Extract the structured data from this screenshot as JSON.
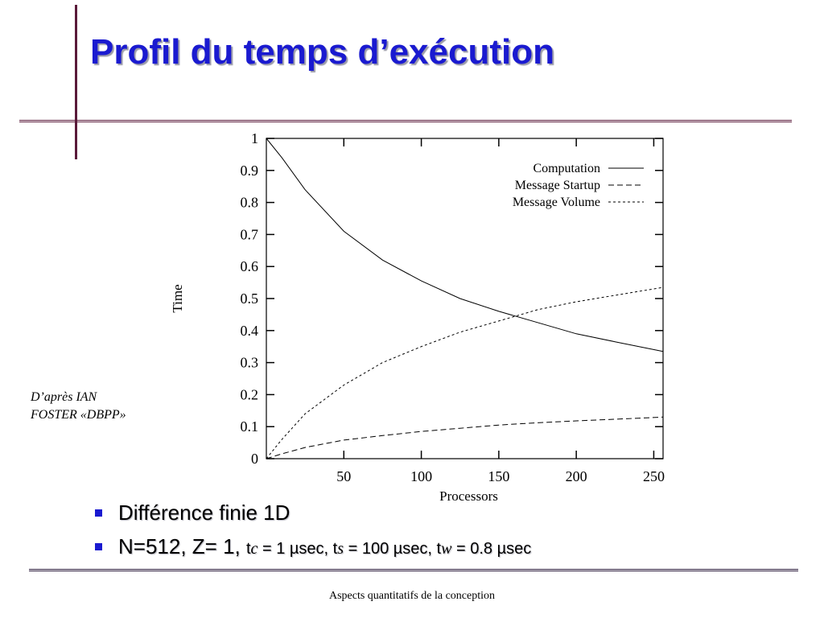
{
  "slide": {
    "title": "Profil du temps d’exécution",
    "attribution": [
      "D’après IAN",
      "FOSTER «DBPP»"
    ],
    "bullets": [
      {
        "text": "Différence finie 1D"
      },
      {
        "parts": [
          "N=512, Z= 1, ",
          "t",
          "c",
          " = 1 µsec, t",
          "s",
          " = 100 µsec, t",
          "w",
          " = 0.8 µsec"
        ]
      }
    ],
    "footer": "Aspects quantitatifs de la conception",
    "colors": {
      "title": "#1a1ad0",
      "bullet": "#1a1ad0",
      "rule": "#5a1a3a"
    }
  },
  "chart_data": {
    "type": "line",
    "xlabel": "Processors",
    "ylabel": "Time",
    "xlim": [
      0,
      256
    ],
    "ylim": [
      0,
      1
    ],
    "xticks": [
      50,
      100,
      150,
      200,
      250
    ],
    "yticks": [
      0,
      0.1,
      0.2,
      0.3,
      0.4,
      0.5,
      0.6,
      0.7,
      0.8,
      0.9,
      1
    ],
    "ytick_labels": [
      "0",
      "0.1",
      "0.2",
      "0.3",
      "0.4",
      "0.5",
      "0.6",
      "0.7",
      "0.8",
      "0.9",
      "1"
    ],
    "legend_position": "top-right",
    "grid": false,
    "series": [
      {
        "name": "Computation",
        "style": "solid",
        "x": [
          0,
          10,
          25,
          50,
          75,
          100,
          125,
          150,
          175,
          200,
          225,
          256
        ],
        "y": [
          1.0,
          0.94,
          0.84,
          0.71,
          0.62,
          0.555,
          0.5,
          0.46,
          0.425,
          0.39,
          0.365,
          0.335
        ]
      },
      {
        "name": "Message Startup",
        "style": "dashed",
        "x": [
          0,
          10,
          25,
          50,
          75,
          100,
          125,
          150,
          175,
          200,
          225,
          256
        ],
        "y": [
          0.0,
          0.015,
          0.035,
          0.058,
          0.072,
          0.085,
          0.095,
          0.105,
          0.112,
          0.118,
          0.123,
          0.13
        ]
      },
      {
        "name": "Message Volume",
        "style": "dotted",
        "x": [
          0,
          10,
          25,
          50,
          75,
          100,
          125,
          150,
          175,
          200,
          225,
          256
        ],
        "y": [
          0.0,
          0.06,
          0.14,
          0.23,
          0.3,
          0.35,
          0.395,
          0.43,
          0.465,
          0.49,
          0.51,
          0.535
        ]
      }
    ]
  }
}
